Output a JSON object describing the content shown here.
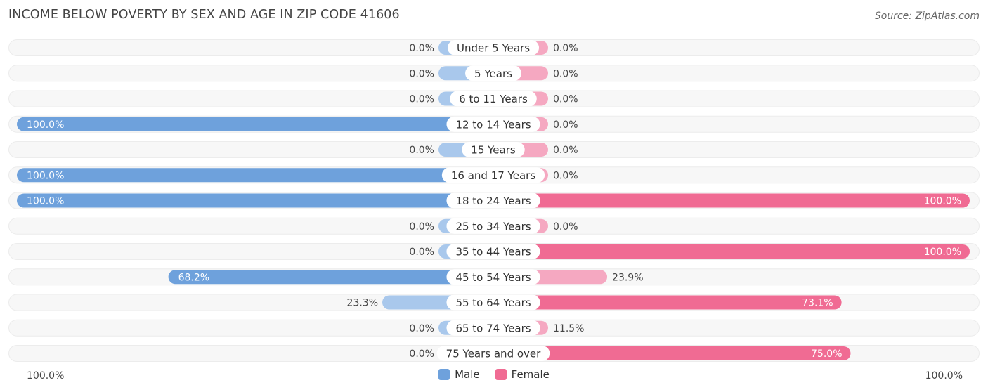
{
  "title": "INCOME BELOW POVERTY BY SEX AND AGE IN ZIP CODE 41606",
  "source": "Source: ZipAtlas.com",
  "colors": {
    "male": "#6ea1dc",
    "male_light": "#a9c8ec",
    "female": "#f06b93",
    "female_light": "#f5a8c1",
    "track": "#efefef"
  },
  "chart_data": {
    "type": "bar",
    "orientation": "horizontal-diverging",
    "categories": [
      "Under 5 Years",
      "5 Years",
      "6 to 11 Years",
      "12 to 14 Years",
      "15 Years",
      "16 and 17 Years",
      "18 to 24 Years",
      "25 to 34 Years",
      "35 to 44 Years",
      "45 to 54 Years",
      "55 to 64 Years",
      "65 to 74 Years",
      "75 Years and over"
    ],
    "series": [
      {
        "name": "Male",
        "values": [
          0.0,
          0.0,
          0.0,
          100.0,
          0.0,
          100.0,
          100.0,
          0.0,
          0.0,
          68.2,
          23.3,
          0.0,
          0.0
        ],
        "labels": [
          "0.0%",
          "0.0%",
          "0.0%",
          "100.0%",
          "0.0%",
          "100.0%",
          "100.0%",
          "0.0%",
          "0.0%",
          "68.2%",
          "23.3%",
          "0.0%",
          "0.0%"
        ]
      },
      {
        "name": "Female",
        "values": [
          0.0,
          0.0,
          0.0,
          0.0,
          0.0,
          0.0,
          100.0,
          0.0,
          100.0,
          23.9,
          73.1,
          11.5,
          75.0
        ],
        "labels": [
          "0.0%",
          "0.0%",
          "0.0%",
          "0.0%",
          "0.0%",
          "0.0%",
          "100.0%",
          "0.0%",
          "100.0%",
          "23.9%",
          "73.1%",
          "11.5%",
          "75.0%"
        ]
      }
    ],
    "xlim": [
      0,
      100
    ],
    "axis_labels": {
      "left": "100.0%",
      "right": "100.0%"
    },
    "legend": {
      "position": "bottom-center",
      "entries": [
        "Male",
        "Female"
      ]
    }
  }
}
